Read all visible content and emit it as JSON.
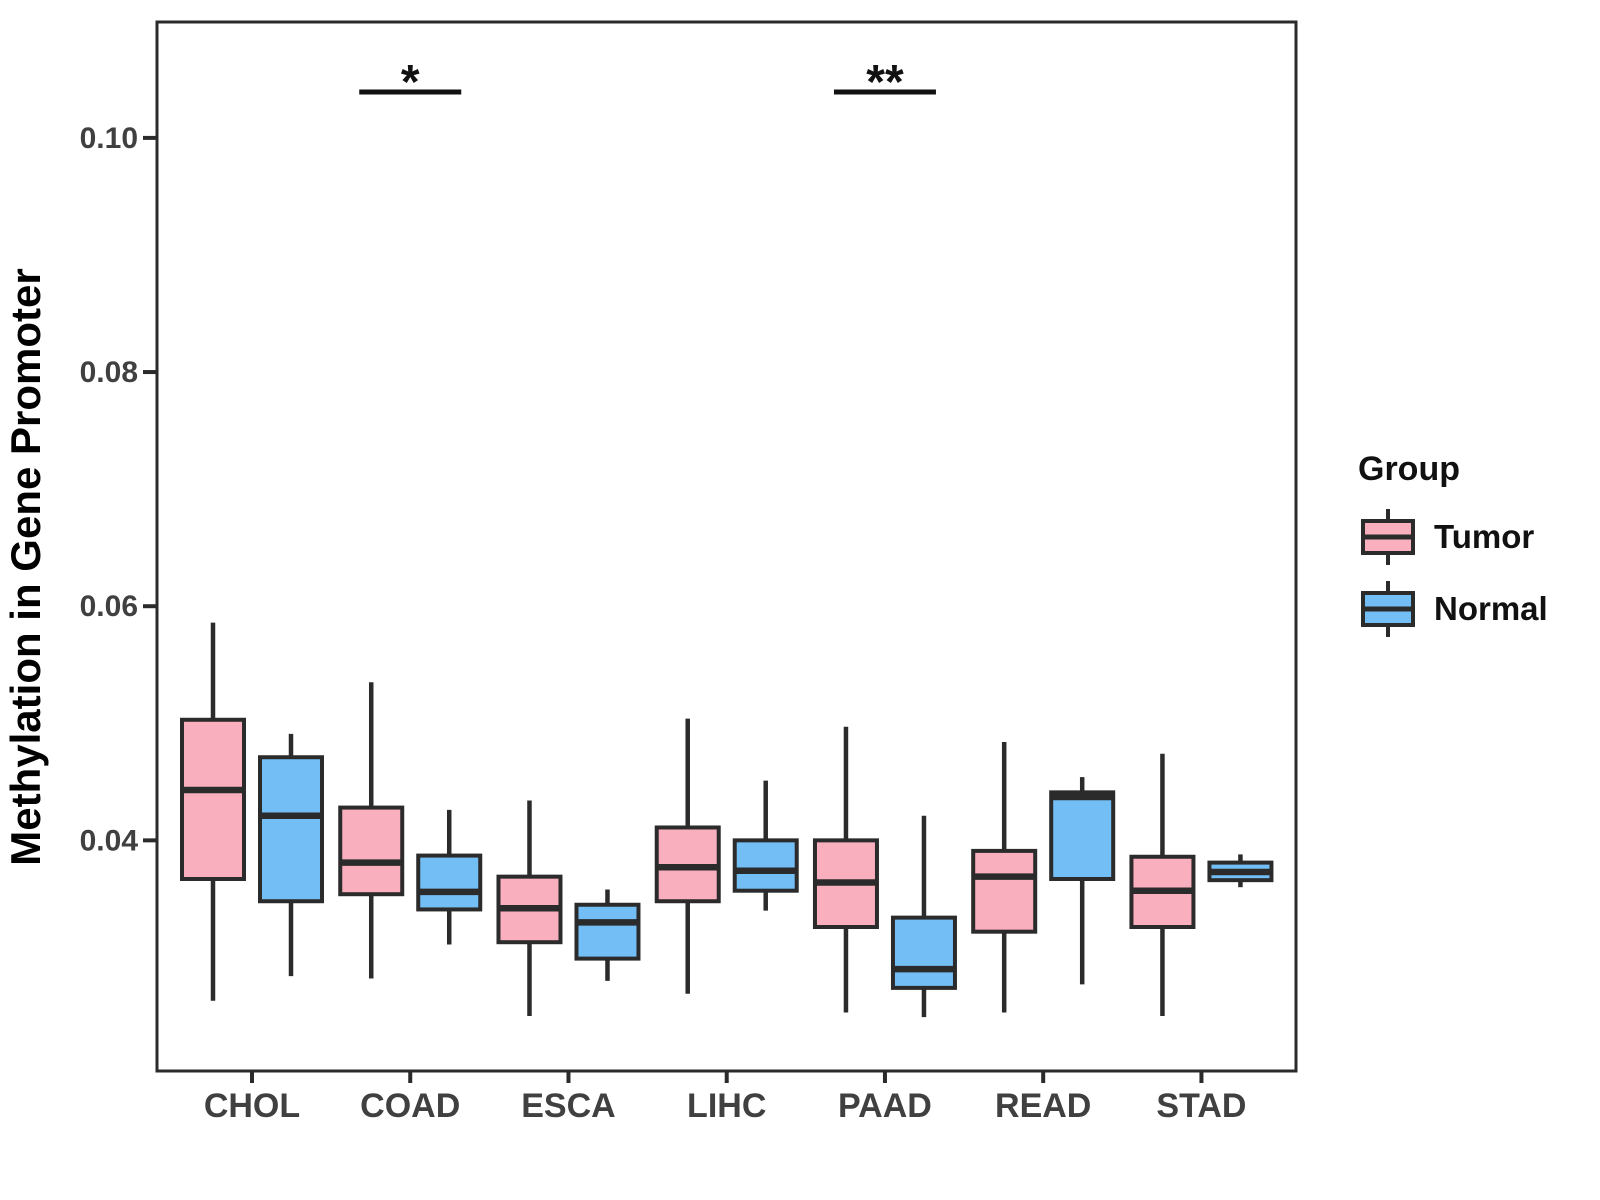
{
  "figure": {
    "background": "#FFFFFF"
  },
  "chart_data": {
    "type": "boxplot",
    "title": "",
    "xlabel": "",
    "ylabel": "Methylation in Gene Promoter",
    "legend_title": "Group",
    "legend_position": "right",
    "grid": false,
    "ylim": [
      0.0203,
      0.1099
    ],
    "yticks": [
      {
        "value": 0.04,
        "label": "0.04"
      },
      {
        "value": 0.06,
        "label": "0.06"
      },
      {
        "value": 0.08,
        "label": "0.08"
      },
      {
        "value": 0.1,
        "label": "0.10"
      }
    ],
    "categories": [
      "CHOL",
      "COAD",
      "ESCA",
      "LIHC",
      "PAAD",
      "READ",
      "STAD"
    ],
    "box_outline_color": "#2B2B2B",
    "axis_color": "#2B2B2B",
    "series": [
      {
        "name": "Tumor",
        "color": "#FAAFBF",
        "boxes": [
          {
            "whisker_low": 0.0263,
            "q1": 0.0367,
            "median": 0.0443,
            "q3": 0.0503,
            "whisker_high": 0.0586
          },
          {
            "whisker_low": 0.0282,
            "q1": 0.0354,
            "median": 0.0381,
            "q3": 0.0428,
            "whisker_high": 0.0535
          },
          {
            "whisker_low": 0.025,
            "q1": 0.0313,
            "median": 0.0342,
            "q3": 0.0369,
            "whisker_high": 0.0434
          },
          {
            "whisker_low": 0.0269,
            "q1": 0.0348,
            "median": 0.0377,
            "q3": 0.0411,
            "whisker_high": 0.0504
          },
          {
            "whisker_low": 0.0253,
            "q1": 0.0326,
            "median": 0.0364,
            "q3": 0.04,
            "whisker_high": 0.0497
          },
          {
            "whisker_low": 0.0253,
            "q1": 0.0322,
            "median": 0.0369,
            "q3": 0.0391,
            "whisker_high": 0.0484
          },
          {
            "whisker_low": 0.025,
            "q1": 0.0326,
            "median": 0.0357,
            "q3": 0.0386,
            "whisker_high": 0.0474
          }
        ]
      },
      {
        "name": "Normal",
        "color": "#73BEF5",
        "boxes": [
          {
            "whisker_low": 0.0284,
            "q1": 0.0348,
            "median": 0.0421,
            "q3": 0.0471,
            "whisker_high": 0.0491
          },
          {
            "whisker_low": 0.0311,
            "q1": 0.0341,
            "median": 0.0356,
            "q3": 0.0387,
            "whisker_high": 0.0426
          },
          {
            "whisker_low": 0.028,
            "q1": 0.0299,
            "median": 0.033,
            "q3": 0.0345,
            "whisker_high": 0.0358
          },
          {
            "whisker_low": 0.034,
            "q1": 0.0357,
            "median": 0.0374,
            "q3": 0.04,
            "whisker_high": 0.0451
          },
          {
            "whisker_low": 0.0249,
            "q1": 0.0274,
            "median": 0.029,
            "q3": 0.0334,
            "whisker_high": 0.0421
          },
          {
            "whisker_low": 0.0277,
            "q1": 0.0367,
            "median": 0.0437,
            "q3": 0.0441,
            "whisker_high": 0.0454
          },
          {
            "whisker_low": 0.036,
            "q1": 0.0366,
            "median": 0.0373,
            "q3": 0.0381,
            "whisker_high": 0.0388
          }
        ]
      }
    ],
    "significance": [
      {
        "category": "COAD",
        "label": "*"
      },
      {
        "category": "PAAD",
        "label": "**"
      }
    ]
  }
}
